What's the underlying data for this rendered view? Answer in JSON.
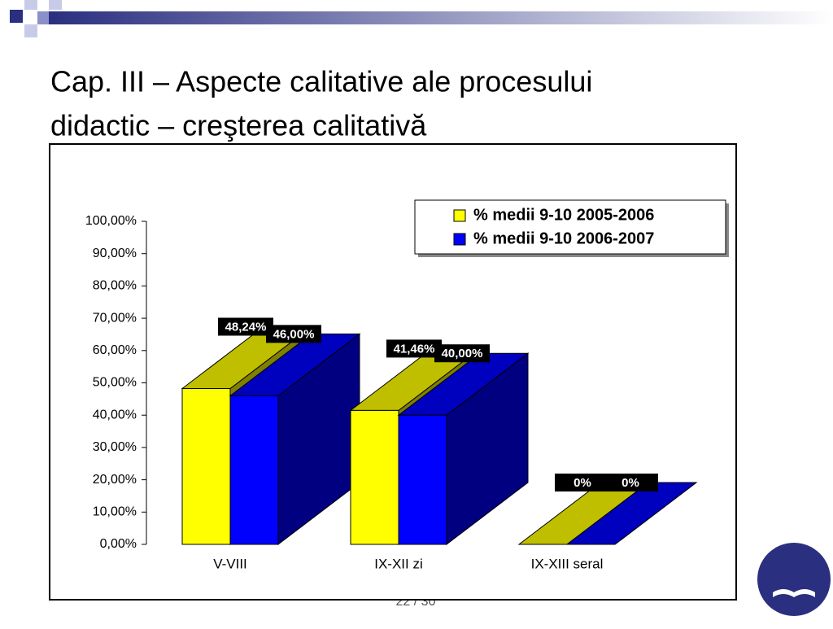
{
  "slide": {
    "title_lines": [
      "Cap. III – Aspecte calitative ale procesului",
      "didactic – creşterea calitativă"
    ],
    "page_number": "22 / 30"
  },
  "chart_data": {
    "type": "bar3d",
    "categories": [
      "V-VIII",
      "IX-XII zi",
      "IX-XIII seral"
    ],
    "series": [
      {
        "name": "% medii 9-10 2005-2006",
        "color": "#ffff00",
        "values": [
          48.24,
          41.46,
          0
        ],
        "value_labels": [
          "48,24%",
          "41,46%",
          "0%"
        ]
      },
      {
        "name": "% medii 9-10 2006-2007",
        "color": "#0000ff",
        "values": [
          46,
          40,
          0
        ],
        "value_labels": [
          "46,00%",
          "40,00%",
          "0%"
        ]
      }
    ],
    "ylim": [
      0,
      100
    ],
    "yticks": [
      {
        "value": 0,
        "label": "0,00%"
      },
      {
        "value": 10,
        "label": "10,00%"
      },
      {
        "value": 20,
        "label": "20,00%"
      },
      {
        "value": 30,
        "label": "30,00%"
      },
      {
        "value": 40,
        "label": "40,00%"
      },
      {
        "value": 50,
        "label": "50,00%"
      },
      {
        "value": 60,
        "label": "60,00%"
      },
      {
        "value": 70,
        "label": "70,00%"
      },
      {
        "value": 80,
        "label": "80,00%"
      },
      {
        "value": 90,
        "label": "90,00%"
      },
      {
        "value": 100,
        "label": "100,00%"
      }
    ],
    "legend": "top-right"
  }
}
